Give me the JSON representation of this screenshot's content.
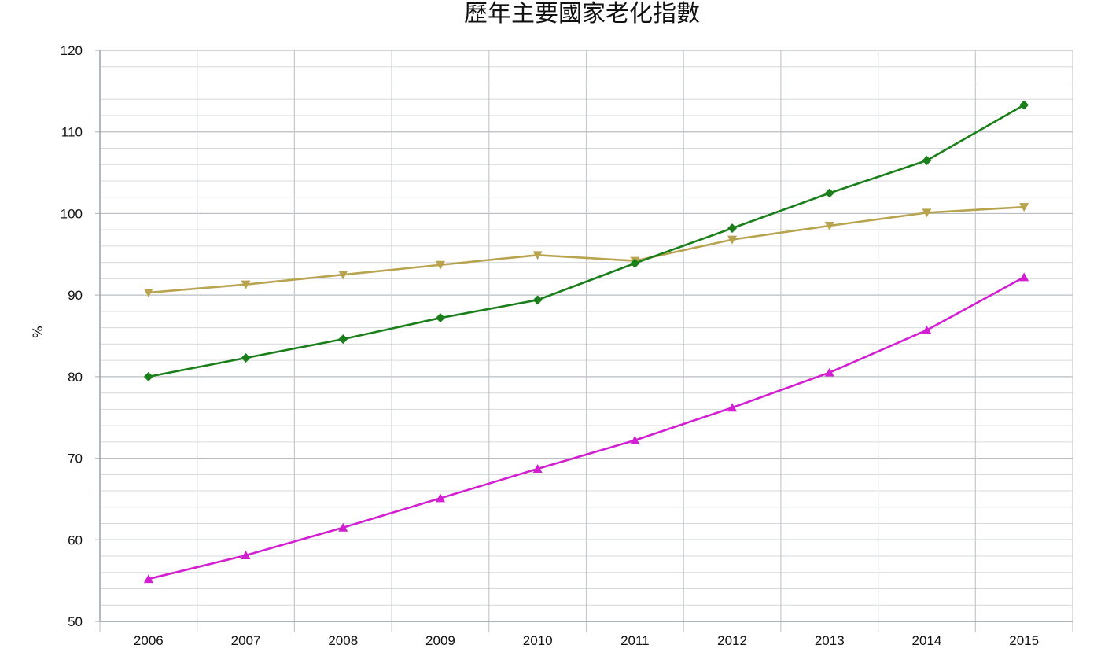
{
  "chart_data": {
    "type": "line",
    "title": "歷年主要國家老化指數",
    "xlabel": "",
    "ylabel": "%",
    "categories": [
      "2006",
      "2007",
      "2008",
      "2009",
      "2010",
      "2011",
      "2012",
      "2013",
      "2014",
      "2015"
    ],
    "ylim": [
      50,
      120
    ],
    "yticks": [
      "50",
      "60",
      "70",
      "80",
      "90",
      "100",
      "110",
      "120"
    ],
    "grid": true,
    "series": [
      {
        "color": "#b8a34f",
        "marker": "triangle-down",
        "values": [
          90.3,
          91.3,
          92.5,
          93.7,
          94.9,
          94.2,
          96.8,
          98.5,
          100.1,
          100.8
        ]
      },
      {
        "color": "#1a7f1a",
        "marker": "diamond",
        "values": [
          80.0,
          82.3,
          84.6,
          87.2,
          89.4,
          93.9,
          98.2,
          102.5,
          106.5,
          113.3
        ]
      },
      {
        "color": "#d11fd1",
        "marker": "triangle-up",
        "values": [
          55.2,
          58.1,
          61.5,
          65.1,
          68.7,
          72.2,
          76.2,
          80.5,
          85.7,
          92.2
        ]
      }
    ]
  }
}
